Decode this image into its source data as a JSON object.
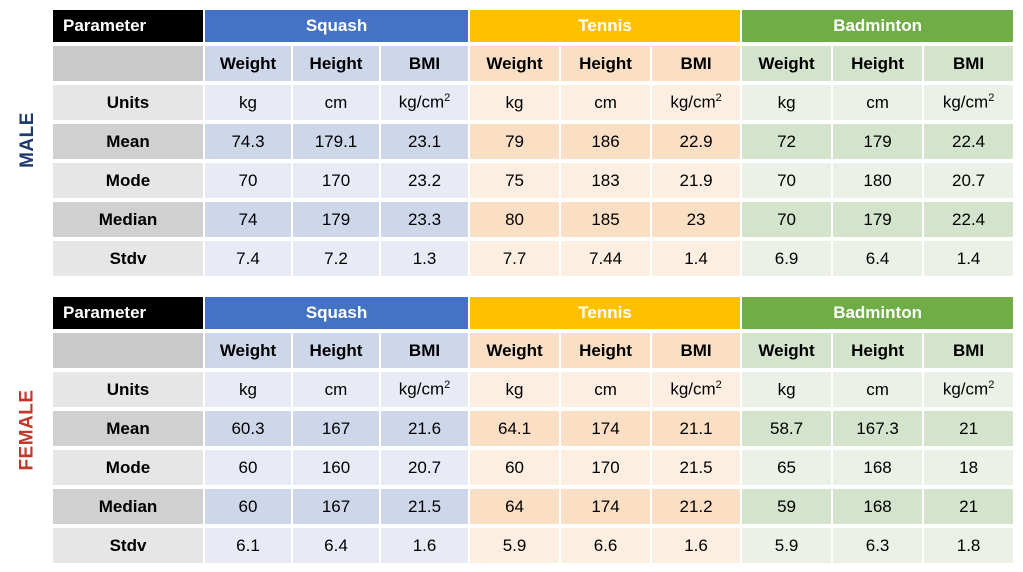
{
  "male": {
    "side_label": "MALE",
    "header": {
      "parameter": "Parameter",
      "groups": [
        "Squash",
        "Tennis",
        "Badminton"
      ]
    },
    "subheaders": [
      "Weight",
      "Height",
      "BMI",
      "Weight",
      "Height",
      "BMI",
      "Weight",
      "Height",
      "BMI"
    ],
    "rows": [
      {
        "label": "Units",
        "values": [
          "kg",
          "cm",
          "kg/cm²",
          "kg",
          "cm",
          "kg/cm²",
          "kg",
          "cm",
          "kg/cm²"
        ]
      },
      {
        "label": "Mean",
        "values": [
          "74.3",
          "179.1",
          "23.1",
          "79",
          "186",
          "22.9",
          "72",
          "179",
          "22.4"
        ]
      },
      {
        "label": "Mode",
        "values": [
          "70",
          "170",
          "23.2",
          "75",
          "183",
          "21.9",
          "70",
          "180",
          "20.7"
        ]
      },
      {
        "label": "Median",
        "values": [
          "74",
          "179",
          "23.3",
          "80",
          "185",
          "23",
          "70",
          "179",
          "22.4"
        ]
      },
      {
        "label": "Stdv",
        "values": [
          "7.4",
          "7.2",
          "1.3",
          "7.7",
          "7.44",
          "1.4",
          "6.9",
          "6.4",
          "1.4"
        ]
      }
    ]
  },
  "female": {
    "side_label": "FEMALE",
    "header": {
      "parameter": "Parameter",
      "groups": [
        "Squash",
        "Tennis",
        "Badminton"
      ]
    },
    "subheaders": [
      "Weight",
      "Height",
      "BMI",
      "Weight",
      "Height",
      "BMI",
      "Weight",
      "Height",
      "BMI"
    ],
    "rows": [
      {
        "label": "Units",
        "values": [
          "kg",
          "cm",
          "kg/cm²",
          "kg",
          "cm",
          "kg/cm²",
          "kg",
          "cm",
          "kg/cm²"
        ]
      },
      {
        "label": "Mean",
        "values": [
          "60.3",
          "167",
          "21.6",
          "64.1",
          "174",
          "21.1",
          "58.7",
          "167.3",
          "21"
        ]
      },
      {
        "label": "Mode",
        "values": [
          "60",
          "160",
          "20.7",
          "60",
          "170",
          "21.5",
          "65",
          "168",
          "18"
        ]
      },
      {
        "label": "Median",
        "values": [
          "60",
          "167",
          "21.5",
          "64",
          "174",
          "21.2",
          "59",
          "168",
          "21"
        ]
      },
      {
        "label": "Stdv",
        "values": [
          "6.1",
          "6.4",
          "1.6",
          "5.9",
          "6.6",
          "1.6",
          "5.9",
          "6.3",
          "1.8"
        ]
      }
    ]
  },
  "colors": {
    "squash": "#4472c4",
    "tennis": "#ffc000",
    "badminton": "#70ad47",
    "male_label": "#1f3a6e",
    "female_label": "#c0392b"
  }
}
